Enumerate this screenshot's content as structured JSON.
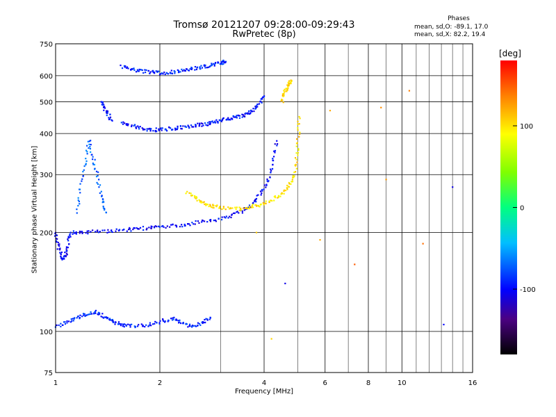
{
  "header": {
    "title_line1": "Tromsø 20121207 09:28:00-09:29:43",
    "title_line2": "RwPretec (8p)",
    "phase_title": "Phases",
    "phase_o": "mean, sd,O: -89.1, 17.0",
    "phase_x": "mean, sd,X:  82.2, 19.4"
  },
  "colorbar": {
    "unit": "[deg]",
    "ticks": [
      "100",
      "0",
      "-100"
    ],
    "range": [
      -180,
      180
    ]
  },
  "chart_data": {
    "type": "scatter",
    "title": "Tromsø 20121207 09:28:00-09:29:43",
    "subtitle": "RwPretec (8p)",
    "xlabel": "Frequency [MHz]",
    "ylabel": "Stationary phase Virtual Height [km]",
    "xscale": "log",
    "yscale": "log",
    "xlim": [
      1,
      16
    ],
    "ylim": [
      75,
      750
    ],
    "xticks": [
      "1",
      "2",
      "4",
      "6",
      "8",
      "10",
      "16"
    ],
    "yticks": [
      "75",
      "100",
      "200",
      "300",
      "400",
      "500",
      "600",
      "750"
    ],
    "grid": true,
    "color_by": "phase",
    "traces": [
      {
        "x": [
          1.0,
          1.02,
          1.05,
          1.08,
          1.1,
          1.2,
          1.4,
          1.6,
          1.8,
          2.0,
          2.3,
          2.6,
          3.0,
          3.4,
          3.7,
          4.0,
          4.2,
          4.35
        ],
        "y": [
          200,
          180,
          165,
          175,
          200,
          200,
          202,
          204,
          206,
          208,
          210,
          215,
          220,
          230,
          245,
          270,
          310,
          380
        ],
        "phase": -100
      },
      {
        "x": [
          1.55,
          1.7,
          1.85,
          2.0,
          2.2,
          2.4,
          2.6,
          2.8,
          3.0,
          3.2,
          3.4,
          3.6,
          3.8,
          4.0
        ],
        "y": [
          430,
          420,
          412,
          410,
          415,
          420,
          425,
          430,
          440,
          445,
          450,
          460,
          480,
          520
        ],
        "phase": -95
      },
      {
        "x": [
          1.55,
          1.7,
          1.85,
          2.0,
          2.2,
          2.4,
          2.6,
          2.8,
          3.0,
          3.1
        ],
        "y": [
          640,
          625,
          615,
          612,
          615,
          625,
          635,
          645,
          655,
          662
        ],
        "phase": -90
      },
      {
        "x": [
          1.15,
          1.2,
          1.25,
          1.3,
          1.35,
          1.4
        ],
        "y": [
          230,
          300,
          380,
          320,
          260,
          230
        ],
        "phase": -70
      },
      {
        "x": [
          1.35,
          1.4,
          1.45
        ],
        "y": [
          500,
          470,
          440
        ],
        "phase": -95
      },
      {
        "x": [
          2.4,
          2.6,
          2.8,
          3.0,
          3.4,
          3.7,
          4.0,
          4.4,
          4.7,
          4.9,
          5.0,
          5.05
        ],
        "y": [
          265,
          250,
          242,
          238,
          236,
          240,
          245,
          258,
          275,
          300,
          360,
          450
        ],
        "phase": 110
      },
      {
        "x": [
          4.5,
          4.6,
          4.7,
          4.8
        ],
        "y": [
          500,
          540,
          560,
          580
        ],
        "phase": 115
      },
      {
        "x": [
          1.0,
          1.1,
          1.2,
          1.3,
          1.4,
          1.5,
          1.6,
          1.8,
          2.0,
          2.2,
          2.4,
          2.6,
          2.8
        ],
        "y": [
          103,
          108,
          112,
          115,
          110,
          106,
          104,
          104,
          107,
          110,
          104,
          105,
          110
        ],
        "phase": -90
      }
    ],
    "scatter_points": [
      {
        "x": 6.2,
        "y": 470,
        "phase": 130
      },
      {
        "x": 8.7,
        "y": 480,
        "phase": 140
      },
      {
        "x": 10.5,
        "y": 540,
        "phase": 145
      },
      {
        "x": 14.0,
        "y": 275,
        "phase": -110
      },
      {
        "x": 13.2,
        "y": 105,
        "phase": -100
      },
      {
        "x": 5.8,
        "y": 190,
        "phase": 130
      },
      {
        "x": 7.3,
        "y": 160,
        "phase": 155
      },
      {
        "x": 11.5,
        "y": 185,
        "phase": 150
      },
      {
        "x": 9.0,
        "y": 290,
        "phase": 135
      },
      {
        "x": 4.6,
        "y": 140,
        "phase": -110
      },
      {
        "x": 3.8,
        "y": 200,
        "phase": 120
      },
      {
        "x": 4.2,
        "y": 95,
        "phase": 115
      }
    ]
  }
}
